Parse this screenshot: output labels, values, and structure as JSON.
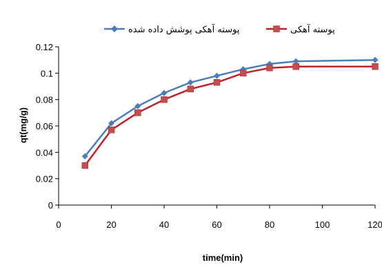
{
  "chart_data": {
    "type": "line",
    "xlabel": "time(min)",
    "ylabel": "qt(mg/g)",
    "xlim": [
      0,
      120
    ],
    "ylim": [
      0,
      0.12
    ],
    "xticks": [
      "0",
      "20",
      "40",
      "60",
      "80",
      "100",
      "120"
    ],
    "yticks": [
      "0",
      "0.02",
      "0.04",
      "0.06",
      "0.08",
      "0.1",
      "0.12"
    ],
    "x": [
      10,
      20,
      30,
      40,
      50,
      60,
      70,
      80,
      90,
      120
    ],
    "grid": false,
    "legend_position": "top",
    "series": [
      {
        "name": "پوسته آهکی پوشش داده شده",
        "color": "#4a7ebb",
        "marker": "diamond",
        "values": [
          0.037,
          0.062,
          0.075,
          0.085,
          0.093,
          0.098,
          0.103,
          0.107,
          0.109,
          0.11
        ]
      },
      {
        "name": "پوسته آهکی",
        "color": "#c0202a",
        "marker": "square",
        "values": [
          0.03,
          0.057,
          0.07,
          0.08,
          0.088,
          0.093,
          0.1,
          0.104,
          0.105,
          0.105
        ]
      }
    ]
  }
}
